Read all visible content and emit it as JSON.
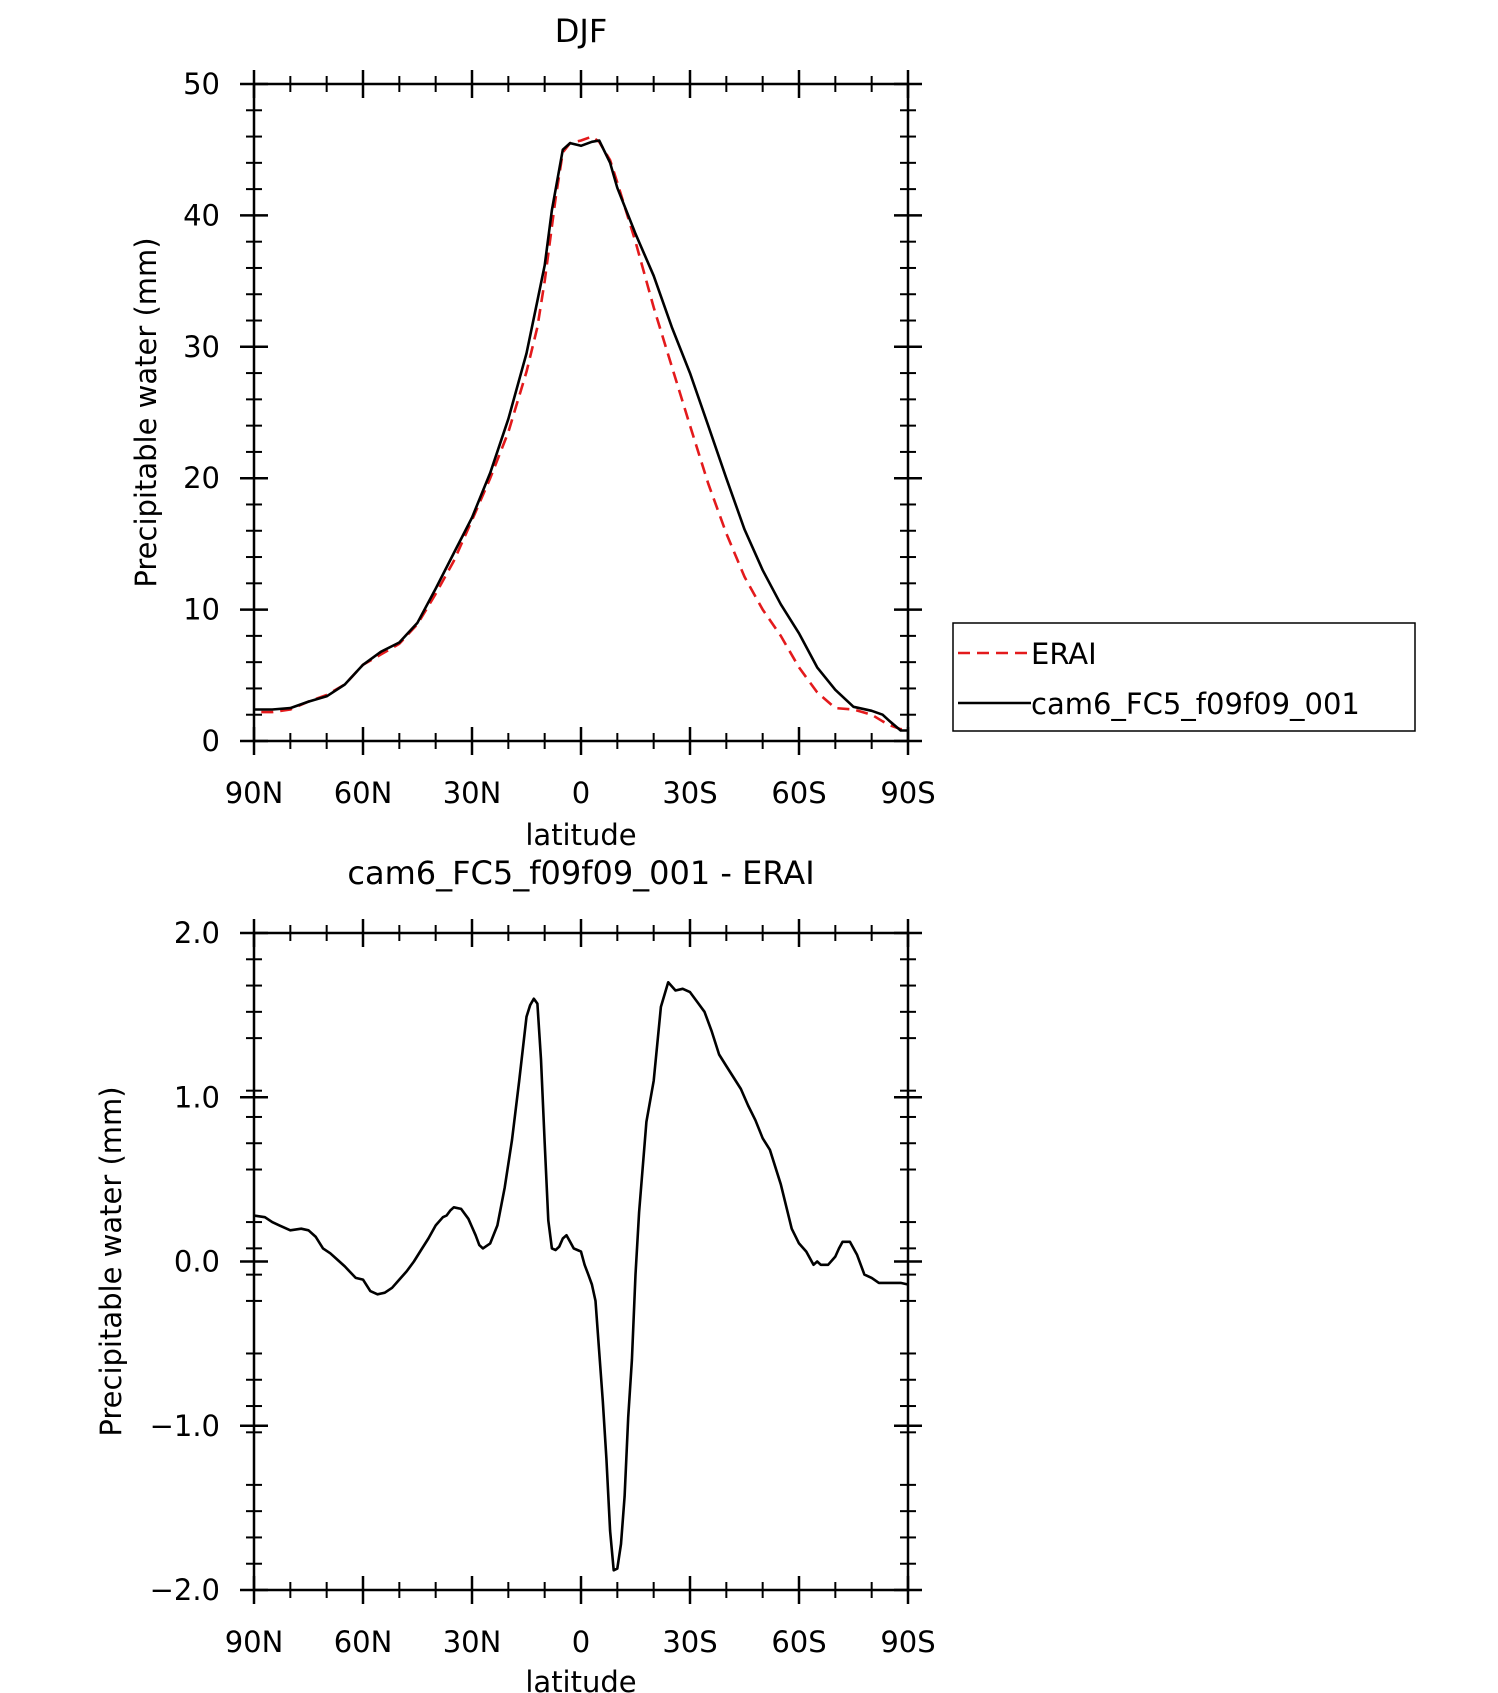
{
  "colors": {
    "erai": "#e31a1c",
    "model": "#000000",
    "axes": "#000000",
    "background": "#ffffff"
  },
  "chart_data": [
    {
      "type": "line",
      "title": "DJF",
      "xlabel": "latitude",
      "ylabel": "Precipitable water (mm)",
      "xlim": [
        90,
        -90
      ],
      "ylim": [
        0,
        50
      ],
      "x_tick_values": [
        90,
        60,
        30,
        0,
        -30,
        -60,
        -90
      ],
      "x_tick_labels": [
        "90N",
        "60N",
        "30N",
        "0",
        "30S",
        "60S",
        "90S"
      ],
      "y_tick_values": [
        0,
        10,
        20,
        30,
        40,
        50
      ],
      "y_tick_labels": [
        "0",
        "10",
        "20",
        "30",
        "40",
        "50"
      ],
      "grid": false,
      "legend_position": "right",
      "series": [
        {
          "name": "ERAI",
          "style": "dashed",
          "color": "#e31a1c",
          "x": [
            88,
            85,
            80,
            75,
            70,
            65,
            60,
            55,
            50,
            45,
            40,
            35,
            30,
            25,
            20,
            15,
            12,
            10,
            7,
            5,
            3,
            0,
            -3,
            -5,
            -8,
            -10,
            -15,
            -20,
            -25,
            -30,
            -35,
            -40,
            -45,
            -50,
            -55,
            -60,
            -65,
            -70,
            -75,
            -80,
            -83,
            -85,
            -88,
            -90
          ],
          "y": [
            2.2,
            2.2,
            2.4,
            3.0,
            3.5,
            4.3,
            5.8,
            6.6,
            7.4,
            8.9,
            11.2,
            13.7,
            16.8,
            20.0,
            23.5,
            28.1,
            31.5,
            35.0,
            41.3,
            44.8,
            45.5,
            45.7,
            46.0,
            45.6,
            44.2,
            42.5,
            38.0,
            33.0,
            28.5,
            24.0,
            19.6,
            15.8,
            12.5,
            10.0,
            8.0,
            5.6,
            3.7,
            2.5,
            2.4,
            2.0,
            1.5,
            1.2,
            0.9,
            0.9
          ]
        },
        {
          "name": "cam6_FC5_f09f09_001",
          "style": "solid",
          "color": "#000000",
          "x": [
            90,
            85,
            80,
            75,
            70,
            65,
            60,
            55,
            50,
            45,
            40,
            35,
            30,
            25,
            20,
            15,
            12,
            10,
            8,
            5,
            3,
            0,
            -3,
            -5,
            -8,
            -10,
            -15,
            -20,
            -25,
            -30,
            -35,
            -40,
            -45,
            -50,
            -55,
            -60,
            -65,
            -70,
            -75,
            -80,
            -83,
            -85,
            -88,
            -90
          ],
          "y": [
            2.4,
            2.4,
            2.5,
            3.0,
            3.4,
            4.3,
            5.8,
            6.8,
            7.5,
            9.0,
            11.6,
            14.3,
            17.0,
            20.4,
            24.5,
            29.5,
            33.5,
            36.2,
            40.4,
            45.0,
            45.5,
            45.3,
            45.6,
            45.7,
            44.0,
            42.1,
            38.6,
            35.4,
            31.5,
            28.0,
            24.0,
            20.0,
            16.1,
            13.0,
            10.4,
            8.2,
            5.6,
            3.9,
            2.6,
            2.3,
            2.0,
            1.5,
            0.8,
            0.8
          ]
        }
      ]
    },
    {
      "type": "line",
      "title": "cam6_FC5_f09f09_001 - ERAI",
      "xlabel": "latitude",
      "ylabel": "Precipitable water (mm)",
      "xlim": [
        90,
        -90
      ],
      "ylim": [
        -2.0,
        2.0
      ],
      "x_tick_values": [
        90,
        60,
        30,
        0,
        -30,
        -60,
        -90
      ],
      "x_tick_labels": [
        "90N",
        "60N",
        "30N",
        "0",
        "30S",
        "60S",
        "90S"
      ],
      "y_tick_values": [
        -2.0,
        -1.0,
        0.0,
        1.0,
        2.0
      ],
      "y_tick_labels": [
        "-2.0",
        "-1.0",
        "0.0",
        "1.0",
        "2.0"
      ],
      "grid": false,
      "series": [
        {
          "name": "",
          "style": "solid",
          "color": "#000000",
          "x": [
            90,
            87,
            85,
            83,
            80,
            77,
            75,
            73,
            71,
            69,
            67,
            65,
            62,
            60,
            58,
            56,
            54,
            52,
            50,
            48,
            46,
            44,
            42,
            40,
            38,
            37,
            36,
            35,
            33,
            31,
            30,
            29,
            28,
            27,
            25,
            23,
            21,
            19,
            17,
            15,
            14,
            13,
            12,
            11,
            10,
            9,
            8,
            7,
            6,
            5,
            4,
            3,
            2,
            1,
            0,
            -1,
            -2,
            -3,
            -4,
            -5,
            -6,
            -7,
            -8,
            -9,
            -10,
            -11,
            -12,
            -13,
            -14,
            -15,
            -16,
            -18,
            -20,
            -22,
            -24,
            -26,
            -28,
            -30,
            -32,
            -34,
            -36,
            -38,
            -40,
            -42,
            -44,
            -46,
            -48,
            -50,
            -52,
            -55,
            -58,
            -60,
            -62,
            -64,
            -65,
            -66,
            -68,
            -70,
            -71,
            -72,
            -74,
            -76,
            -78,
            -80,
            -82,
            -84,
            -86,
            -88,
            -90
          ],
          "y": [
            0.28,
            0.27,
            0.24,
            0.22,
            0.19,
            0.2,
            0.19,
            0.15,
            0.08,
            0.05,
            0.01,
            -0.03,
            -0.1,
            -0.11,
            -0.18,
            -0.2,
            -0.19,
            -0.16,
            -0.11,
            -0.06,
            0.0,
            0.07,
            0.14,
            0.22,
            0.27,
            0.28,
            0.31,
            0.33,
            0.32,
            0.26,
            0.21,
            0.16,
            0.1,
            0.08,
            0.11,
            0.22,
            0.45,
            0.74,
            1.1,
            1.49,
            1.56,
            1.6,
            1.57,
            1.23,
            0.72,
            0.25,
            0.08,
            0.07,
            0.09,
            0.14,
            0.16,
            0.12,
            0.08,
            0.07,
            0.06,
            -0.02,
            -0.08,
            -0.14,
            -0.24,
            -0.55,
            -0.85,
            -1.2,
            -1.64,
            -1.88,
            -1.87,
            -1.72,
            -1.43,
            -0.95,
            -0.6,
            -0.08,
            0.3,
            0.85,
            1.1,
            1.55,
            1.7,
            1.65,
            1.66,
            1.64,
            1.58,
            1.52,
            1.4,
            1.26,
            1.19,
            1.12,
            1.05,
            0.95,
            0.86,
            0.75,
            0.68,
            0.47,
            0.2,
            0.11,
            0.06,
            -0.02,
            0.0,
            -0.02,
            -0.02,
            0.03,
            0.08,
            0.12,
            0.12,
            0.04,
            -0.08,
            -0.1,
            -0.13,
            -0.13,
            -0.13,
            -0.13,
            -0.14
          ]
        }
      ]
    }
  ]
}
